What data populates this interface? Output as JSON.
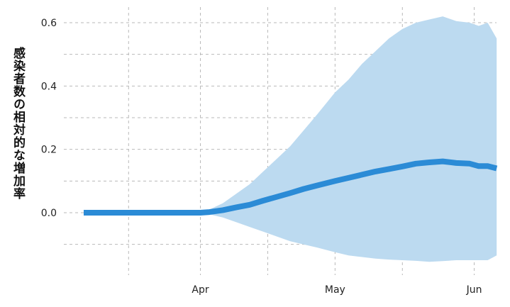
{
  "colors": {
    "line": "#2b8bd6",
    "band": "#bcdaf0",
    "grid": "#b9b9b9"
  },
  "chart_data": {
    "type": "line",
    "title": "",
    "xlabel": "",
    "ylabel": "感染者数の相対的な増加率",
    "x_ticks": [
      {
        "date": "2020-04-01",
        "label": "Apr"
      },
      {
        "date": "2020-05-01",
        "label": "May"
      },
      {
        "date": "2020-06-01",
        "label": "Jun"
      }
    ],
    "x_minor_ticks": [
      "2020-03-16",
      "2020-04-16",
      "2020-05-16"
    ],
    "y_ticks": [
      {
        "value": 0.0,
        "label": "0.0"
      },
      {
        "value": 0.2,
        "label": "0.2"
      },
      {
        "value": 0.4,
        "label": "0.4"
      },
      {
        "value": 0.6,
        "label": "0.6"
      }
    ],
    "y_minor_ticks": [
      -0.1,
      0.1,
      0.3,
      0.5
    ],
    "xlim": [
      "2020-03-06",
      "2020-06-07"
    ],
    "ylim": [
      -0.16,
      0.63
    ],
    "grid": true,
    "series": [
      {
        "x": [
          "2020-03-06",
          "2020-03-10",
          "2020-03-15",
          "2020-03-20",
          "2020-03-25",
          "2020-03-30",
          "2020-04-01",
          "2020-04-03",
          "2020-04-06",
          "2020-04-09",
          "2020-04-12",
          "2020-04-15",
          "2020-04-18",
          "2020-04-21",
          "2020-04-24",
          "2020-04-27",
          "2020-05-01",
          "2020-05-04",
          "2020-05-07",
          "2020-05-10",
          "2020-05-13",
          "2020-05-16",
          "2020-05-19",
          "2020-05-22",
          "2020-05-25",
          "2020-05-28",
          "2020-05-31",
          "2020-06-02",
          "2020-06-04",
          "2020-06-06"
        ],
        "y": [
          0,
          0,
          0,
          0,
          0,
          0,
          0,
          0.002,
          0.008,
          0.017,
          0.025,
          0.038,
          0.05,
          0.062,
          0.075,
          0.086,
          0.1,
          0.11,
          0.12,
          0.13,
          0.138,
          0.146,
          0.155,
          0.159,
          0.162,
          0.157,
          0.155,
          0.147,
          0.147,
          0.14
        ],
        "lower": [
          0,
          0,
          0,
          0,
          0,
          0,
          0,
          -0.005,
          -0.015,
          -0.03,
          -0.045,
          -0.06,
          -0.075,
          -0.09,
          -0.1,
          -0.11,
          -0.125,
          -0.135,
          -0.14,
          -0.145,
          -0.148,
          -0.15,
          -0.152,
          -0.155,
          -0.153,
          -0.15,
          -0.15,
          -0.15,
          -0.15,
          -0.135
        ],
        "upper": [
          0,
          0,
          0,
          0,
          0,
          0,
          0,
          0.01,
          0.03,
          0.06,
          0.09,
          0.13,
          0.17,
          0.21,
          0.26,
          0.31,
          0.38,
          0.42,
          0.47,
          0.51,
          0.55,
          0.58,
          0.6,
          0.61,
          0.62,
          0.605,
          0.6,
          0.59,
          0.6,
          0.55
        ]
      }
    ]
  }
}
